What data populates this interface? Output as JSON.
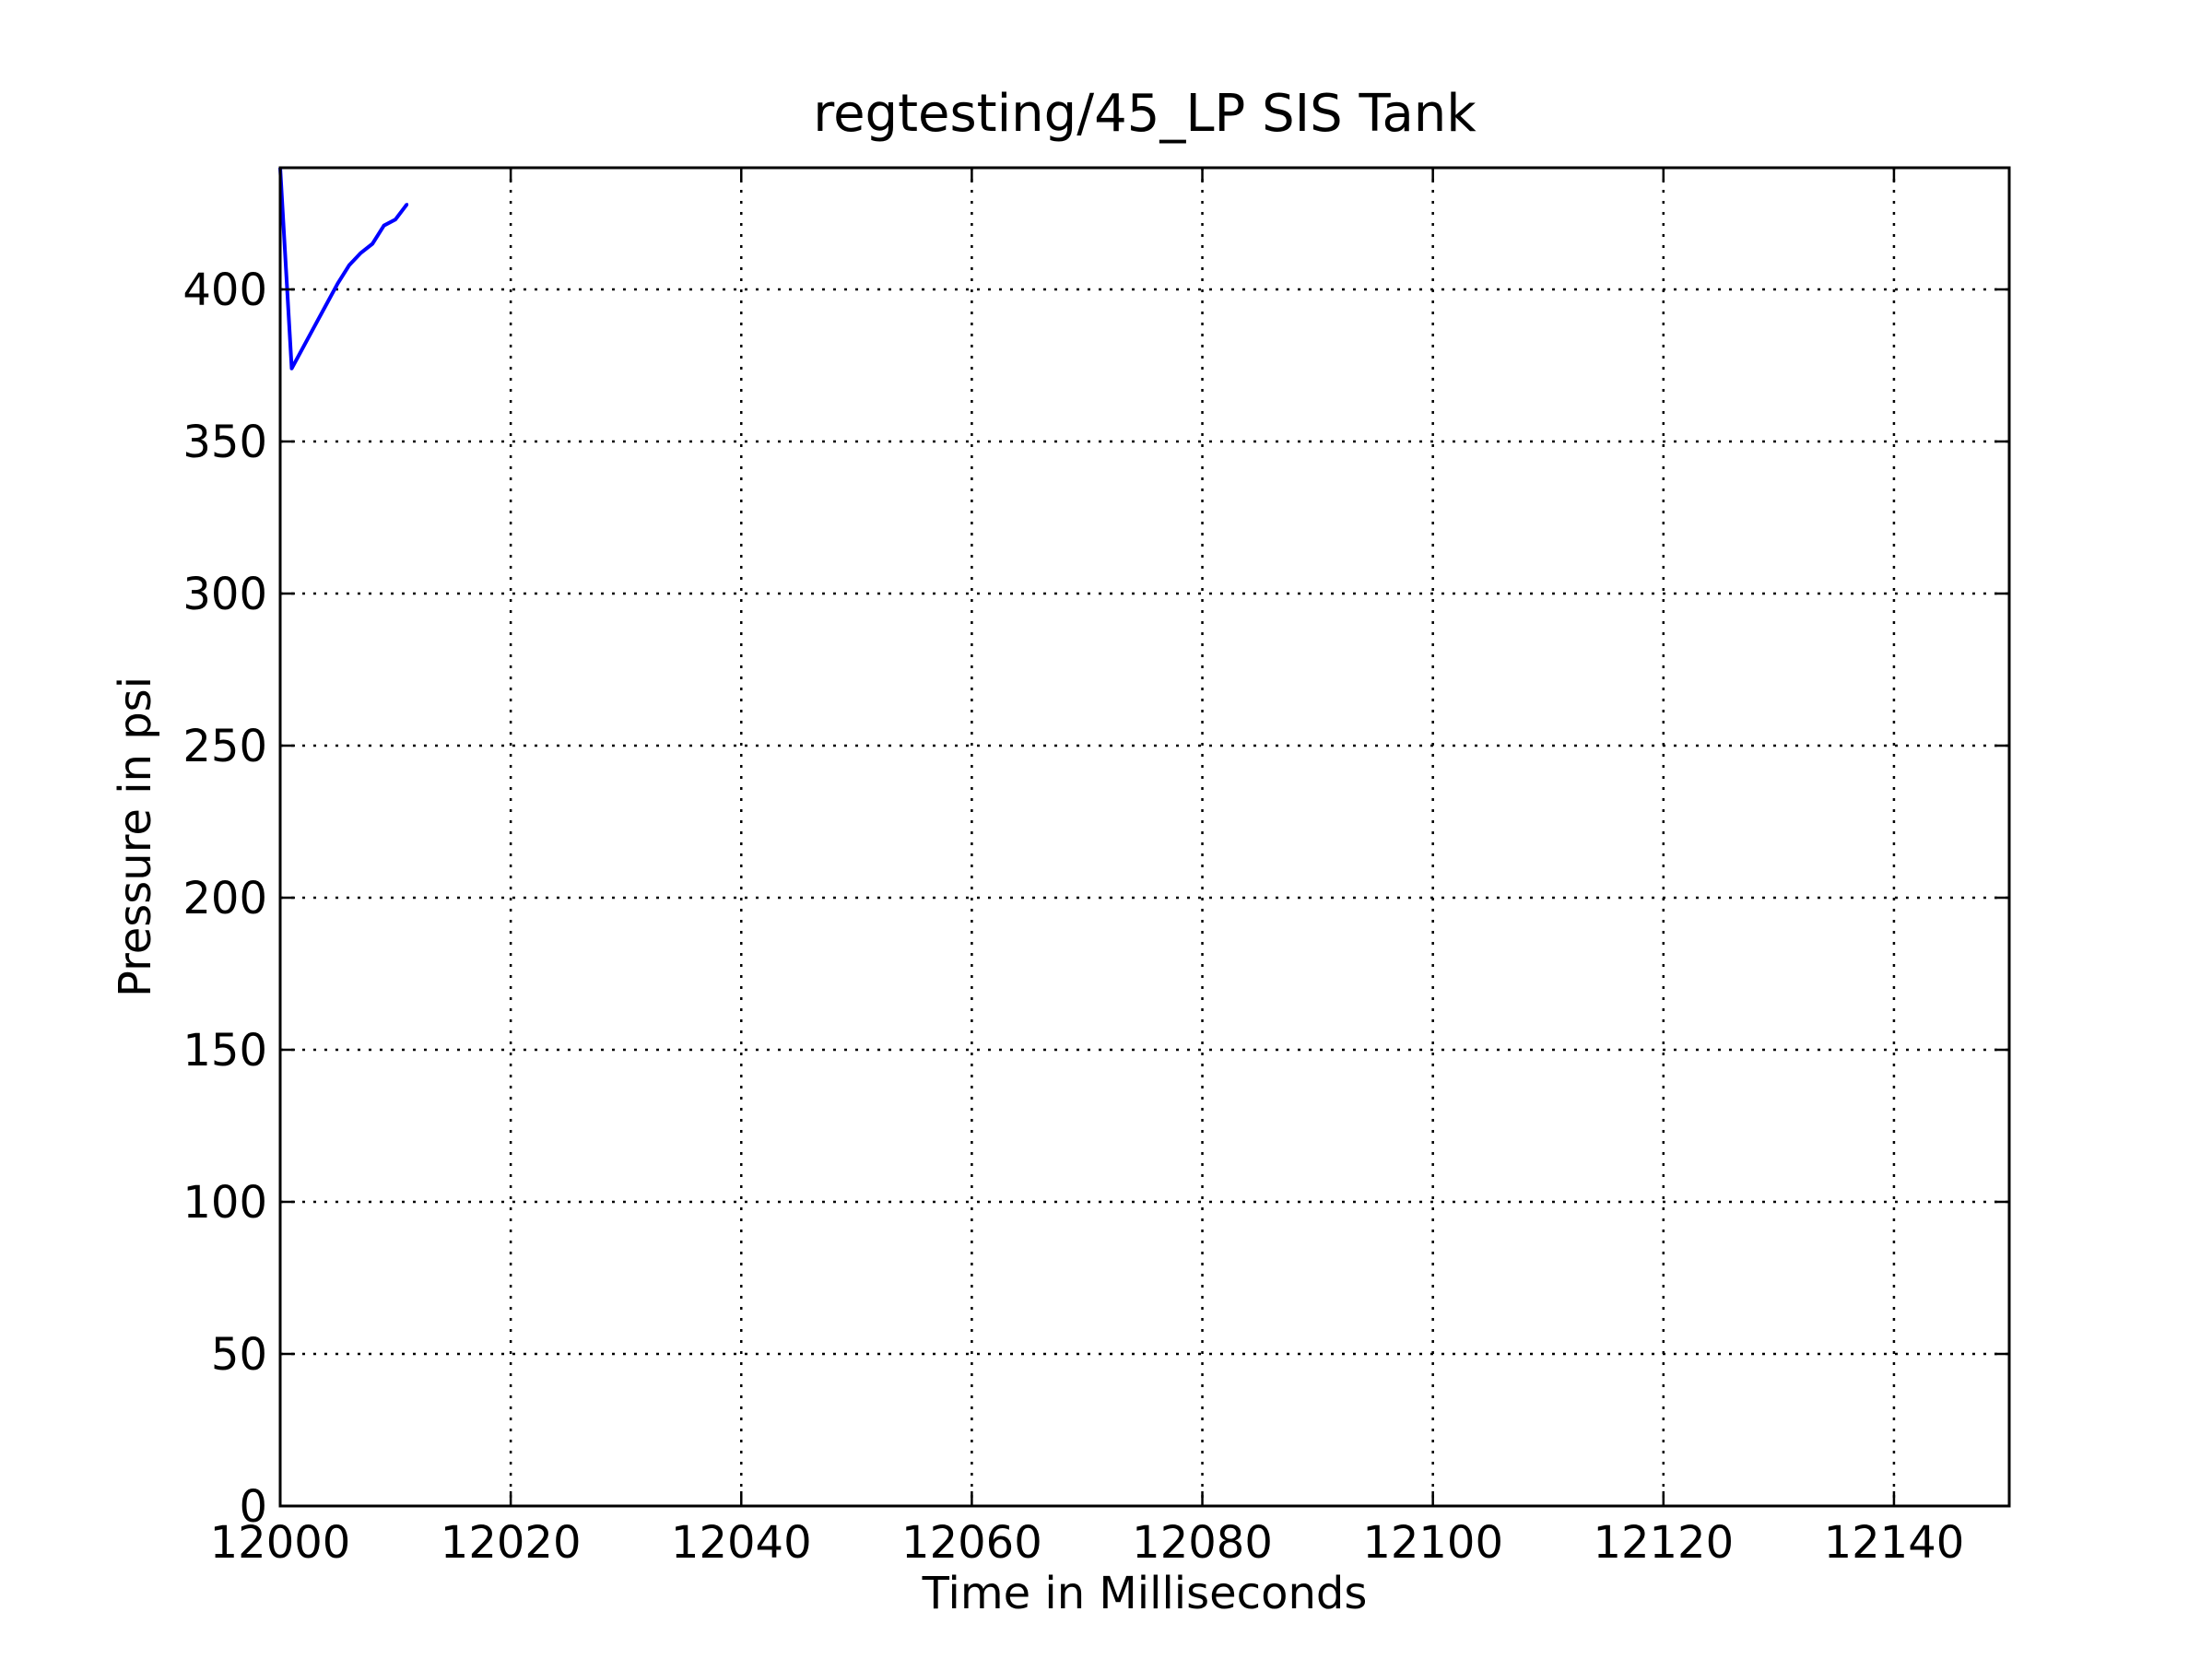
{
  "chart_data": {
    "type": "line",
    "title": "regtesting/45_LP SIS Tank",
    "xlabel": "Time in Milliseconds",
    "ylabel": "Pressure in psi",
    "xlim": [
      12000,
      12150
    ],
    "ylim": [
      0,
      440
    ],
    "x_ticks": [
      12000,
      12020,
      12040,
      12060,
      12080,
      12100,
      12120,
      12140
    ],
    "y_ticks": [
      0,
      50,
      100,
      150,
      200,
      250,
      300,
      350,
      400
    ],
    "grid": true,
    "series": [
      {
        "color": "#0000ff",
        "x": [
          12000,
          12001,
          12002,
          12003,
          12004,
          12005,
          12006,
          12007,
          12008,
          12009,
          12010,
          12011
        ],
        "y": [
          440,
          374,
          381,
          388,
          395,
          402,
          408,
          412,
          415,
          421,
          423,
          428
        ]
      }
    ]
  }
}
